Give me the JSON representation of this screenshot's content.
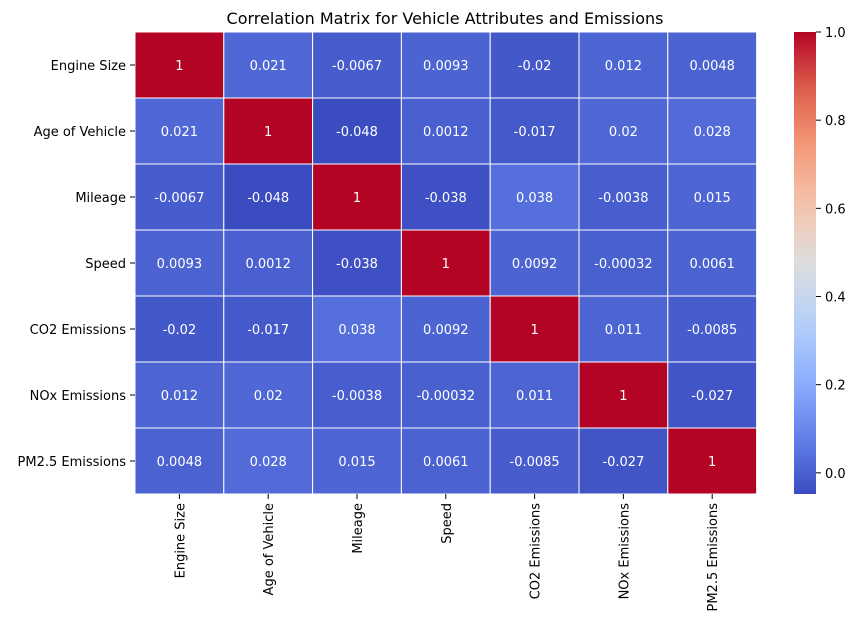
{
  "chart_data": {
    "type": "heatmap",
    "title": "Correlation Matrix for Vehicle Attributes and Emissions",
    "xlabel": "",
    "ylabel": "",
    "rows": [
      "Engine Size",
      "Age of Vehicle",
      "Mileage",
      "Speed",
      "CO2 Emissions",
      "NOx Emissions",
      "PM2.5 Emissions"
    ],
    "columns": [
      "Engine Size",
      "Age of Vehicle",
      "Mileage",
      "Speed",
      "CO2 Emissions",
      "NOx Emissions",
      "PM2.5 Emissions"
    ],
    "values": [
      [
        1,
        0.021,
        -0.0067,
        0.0093,
        -0.02,
        0.012,
        0.0048
      ],
      [
        0.021,
        1,
        -0.048,
        0.0012,
        -0.017,
        0.02,
        0.028
      ],
      [
        -0.0067,
        -0.048,
        1,
        -0.038,
        0.038,
        -0.0038,
        0.015
      ],
      [
        0.0093,
        0.0012,
        -0.038,
        1,
        0.0092,
        -0.00032,
        0.0061
      ],
      [
        -0.02,
        -0.017,
        0.038,
        0.0092,
        1,
        0.011,
        -0.0085
      ],
      [
        0.012,
        0.02,
        -0.0038,
        -0.00032,
        0.011,
        1,
        -0.027
      ],
      [
        0.0048,
        0.028,
        0.015,
        0.0061,
        -0.0085,
        -0.027,
        1
      ]
    ],
    "labels": [
      [
        "1",
        "0.021",
        "-0.0067",
        "0.0093",
        "-0.02",
        "0.012",
        "0.0048"
      ],
      [
        "0.021",
        "1",
        "-0.048",
        "0.0012",
        "-0.017",
        "0.02",
        "0.028"
      ],
      [
        "-0.0067",
        "-0.048",
        "1",
        "-0.038",
        "0.038",
        "-0.0038",
        "0.015"
      ],
      [
        "0.0093",
        "0.0012",
        "-0.038",
        "1",
        "0.0092",
        "-0.00032",
        "0.0061"
      ],
      [
        "-0.02",
        "-0.017",
        "0.038",
        "0.0092",
        "1",
        "0.011",
        "-0.0085"
      ],
      [
        "0.012",
        "0.02",
        "-0.0038",
        "-0.00032",
        "0.011",
        "1",
        "-0.027"
      ],
      [
        "0.0048",
        "0.028",
        "0.015",
        "0.0061",
        "-0.0085",
        "-0.027",
        "1"
      ]
    ],
    "colorscale": "coolwarm",
    "color_range": [
      -0.048,
      1
    ],
    "colorbar_ticks": [
      0.0,
      0.2,
      0.4,
      0.6,
      0.8,
      1.0
    ],
    "colorbar_tick_labels": [
      "0.0",
      "0.2",
      "0.4",
      "0.6",
      "0.8",
      "1.0"
    ],
    "legend_placement": "right",
    "cell_border_color": "#ffffff"
  }
}
